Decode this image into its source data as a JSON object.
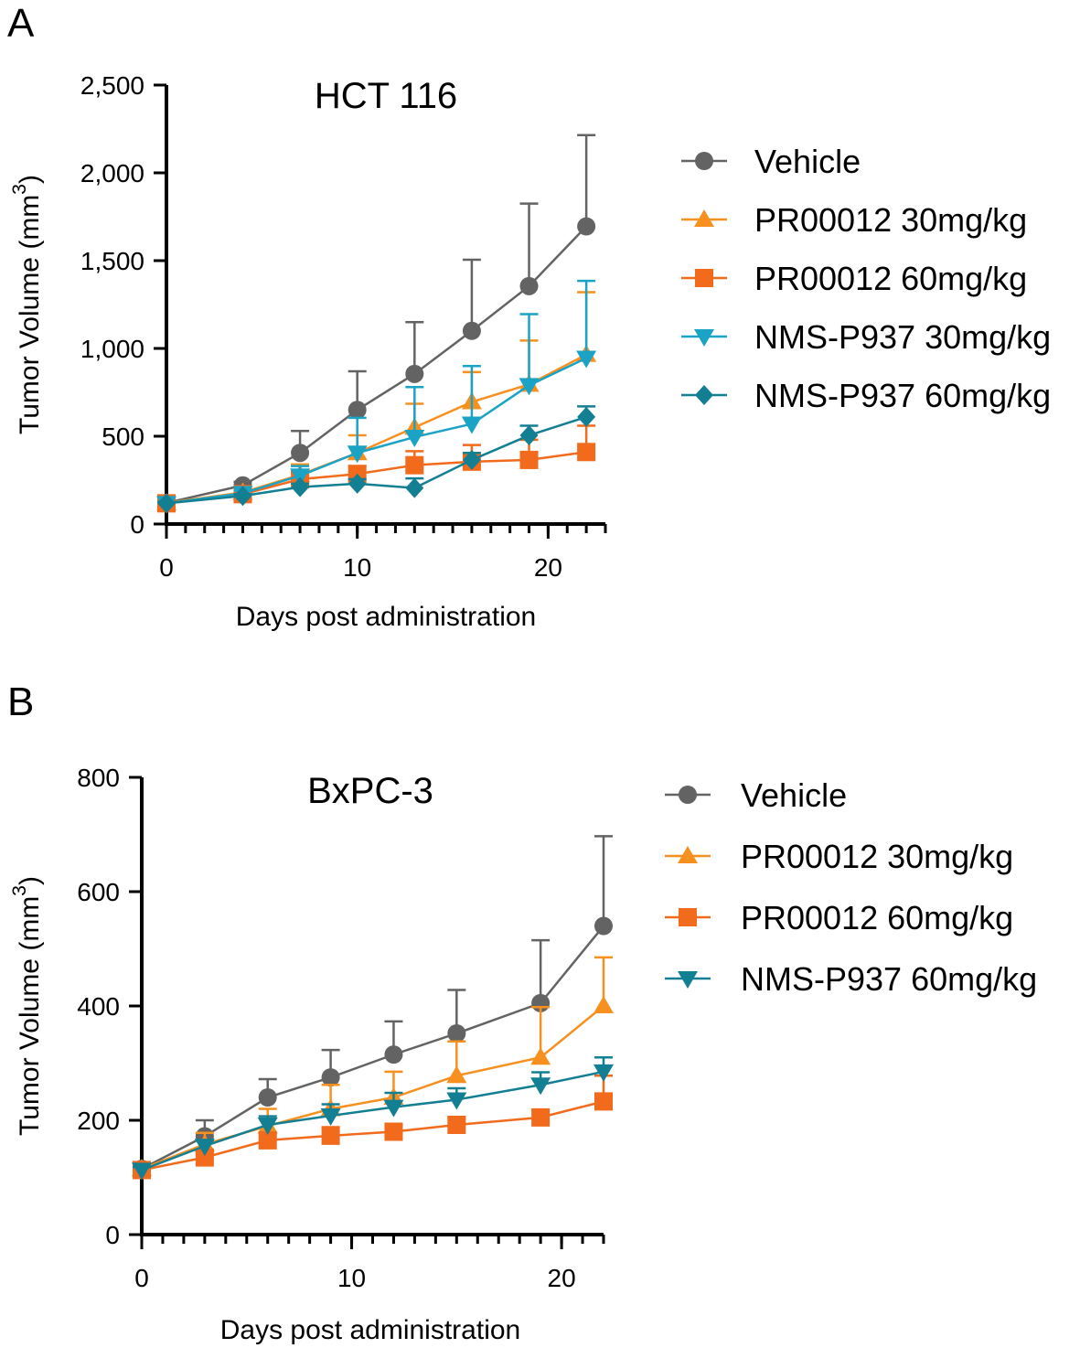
{
  "colors": {
    "vehicle": "#636363",
    "pr30": "#F7901E",
    "pr60": "#F26A1B",
    "nms30": "#1BA3C6",
    "nms60": "#137F93"
  },
  "chart_data": [
    {
      "panel": "A",
      "type": "line",
      "title": "HCT 116",
      "xlabel": "Days post administration",
      "ylabel": "Tumor Volume (mm",
      "ylabel_sup": "3",
      "ylabel_end": ")",
      "xlim": [
        0,
        23
      ],
      "ylim": [
        0,
        2500
      ],
      "xticks": [
        0,
        10,
        20
      ],
      "xtick_labels": [
        "0",
        "10",
        "20"
      ],
      "yticks": [
        0,
        500,
        1000,
        1500,
        2000,
        2500
      ],
      "ytick_labels": [
        "0",
        "500",
        "1,000",
        "1,500",
        "2,000",
        "2,500"
      ],
      "x": [
        0,
        4,
        7,
        10,
        13,
        16,
        19,
        22
      ],
      "series": [
        {
          "name": "Vehicle",
          "color": "vehicle",
          "marker": "circle",
          "values": [
            120,
            220,
            405,
            650,
            855,
            1100,
            1355,
            1695
          ],
          "err": [
            10,
            20,
            125,
            220,
            295,
            405,
            470,
            520
          ]
        },
        {
          "name": "PR00012 30mg/kg",
          "color": "pr30",
          "marker": "triangle-up",
          "values": [
            120,
            180,
            280,
            405,
            550,
            695,
            795,
            965
          ],
          "err": [
            10,
            15,
            60,
            100,
            135,
            170,
            250,
            355
          ]
        },
        {
          "name": "PR00012 60mg/kg",
          "color": "pr60",
          "marker": "square",
          "values": [
            118,
            170,
            255,
            285,
            335,
            355,
            365,
            410
          ],
          "err": [
            8,
            15,
            40,
            45,
            80,
            95,
            115,
            150
          ]
        },
        {
          "name": "NMS-P937 30mg/kg",
          "color": "nms30",
          "marker": "triangle-down",
          "values": [
            118,
            175,
            275,
            405,
            495,
            570,
            790,
            945
          ],
          "err": [
            8,
            15,
            55,
            200,
            285,
            330,
            405,
            440
          ]
        },
        {
          "name": "NMS-P937 60mg/kg",
          "color": "nms60",
          "marker": "diamond",
          "values": [
            118,
            160,
            210,
            230,
            205,
            365,
            505,
            610
          ],
          "err": [
            8,
            10,
            20,
            25,
            55,
            40,
            55,
            60
          ]
        }
      ]
    },
    {
      "panel": "B",
      "type": "line",
      "title": "BxPC-3",
      "xlabel": "Days post administration",
      "ylabel": "Tumor Volume (mm",
      "ylabel_sup": "3",
      "ylabel_end": ")",
      "xlim": [
        0,
        22
      ],
      "ylim": [
        0,
        800
      ],
      "xticks": [
        0,
        10,
        20
      ],
      "xtick_labels": [
        "0",
        "10",
        "20"
      ],
      "yticks": [
        0,
        200,
        400,
        600,
        800
      ],
      "ytick_labels": [
        "0",
        "200",
        "400",
        "600",
        "800"
      ],
      "x": [
        0,
        3,
        6,
        9,
        12,
        15,
        19,
        22
      ],
      "series": [
        {
          "name": "Vehicle",
          "color": "vehicle",
          "marker": "circle",
          "values": [
            115,
            172,
            240,
            275,
            315,
            352,
            405,
            540
          ],
          "err": [
            5,
            28,
            32,
            48,
            58,
            76,
            110,
            157
          ]
        },
        {
          "name": "PR00012 30mg/kg",
          "color": "pr30",
          "marker": "triangle-up",
          "values": [
            115,
            158,
            190,
            220,
            240,
            278,
            310,
            400
          ],
          "err": [
            5,
            20,
            30,
            42,
            45,
            60,
            88,
            85
          ]
        },
        {
          "name": "PR00012 60mg/kg",
          "color": "pr60",
          "marker": "square",
          "values": [
            113,
            135,
            165,
            173,
            180,
            192,
            205,
            233
          ],
          "err": [
            5,
            10,
            12,
            15,
            12,
            12,
            12,
            45
          ]
        },
        {
          "name": "NMS-P937 60mg/kg",
          "color": "nms60",
          "marker": "triangle-down",
          "values": [
            113,
            155,
            192,
            208,
            223,
            236,
            262,
            285
          ],
          "err": [
            5,
            10,
            15,
            20,
            25,
            20,
            22,
            25
          ]
        }
      ]
    }
  ]
}
